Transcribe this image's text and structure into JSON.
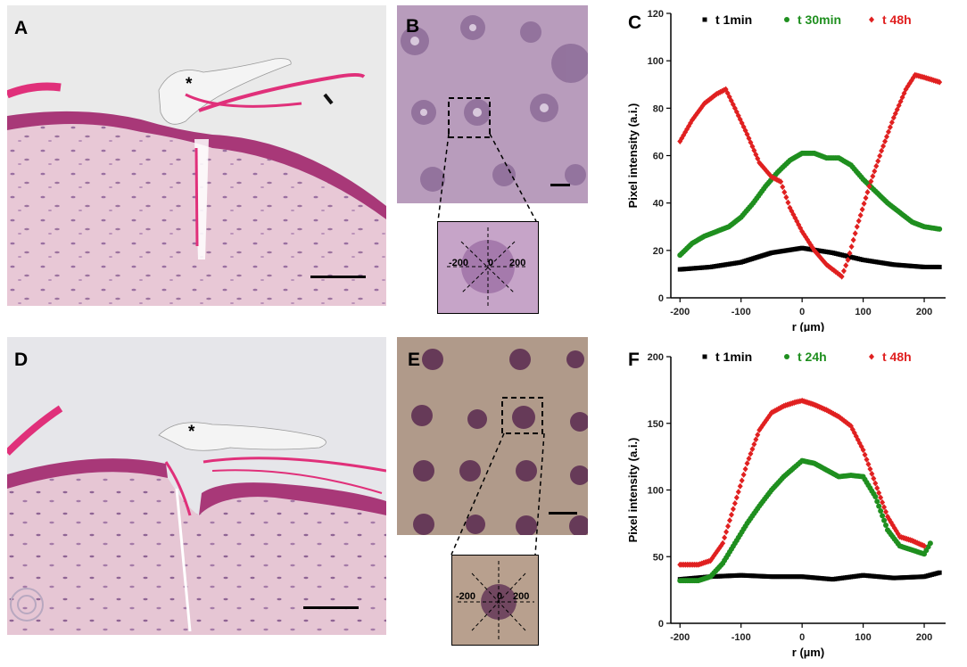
{
  "panels": {
    "A": {
      "label": "A",
      "marker": "*"
    },
    "B": {
      "label": "B",
      "profile": {
        "left": "-200",
        "center": "0",
        "right": "200"
      }
    },
    "C": {
      "label": "C"
    },
    "D": {
      "label": "D",
      "marker": "*"
    },
    "E": {
      "label": "E",
      "profile": {
        "left": "-200",
        "center": "0",
        "right": "200"
      }
    },
    "F": {
      "label": "F"
    }
  },
  "colors": {
    "t_short": "#000000",
    "t_mid": "#1f8f1f",
    "t_long": "#e02020",
    "tissue": "#e8c8d8",
    "epidermis": "#b03878",
    "fiber": "#e0307a"
  },
  "chart_data": [
    {
      "panel": "C",
      "type": "scatter",
      "title": "",
      "xlabel": "r (µm)",
      "ylabel": "Pixel intensity (a.i.)",
      "xlim": [
        -215,
        235
      ],
      "ylim": [
        0,
        120
      ],
      "xticks": [
        -200,
        -100,
        0,
        100,
        200
      ],
      "yticks": [
        0,
        20,
        40,
        60,
        80,
        100,
        120
      ],
      "legend_position": "top",
      "series": [
        {
          "name": "t 1min",
          "color": "#000000",
          "marker": "square",
          "x": [
            -200,
            -150,
            -100,
            -50,
            0,
            50,
            100,
            150,
            200,
            225
          ],
          "y": [
            12,
            13,
            15,
            19,
            21,
            19,
            16,
            14,
            13,
            13
          ]
        },
        {
          "name": "t 30min",
          "color": "#1f8f1f",
          "marker": "circle",
          "x": [
            -200,
            -180,
            -160,
            -140,
            -120,
            -100,
            -80,
            -60,
            -40,
            -20,
            0,
            20,
            40,
            60,
            80,
            100,
            120,
            140,
            160,
            180,
            200,
            225
          ],
          "y": [
            18,
            23,
            26,
            28,
            30,
            34,
            40,
            47,
            53,
            58,
            61,
            61,
            59,
            59,
            56,
            50,
            45,
            40,
            36,
            32,
            30,
            29
          ]
        },
        {
          "name": "t 48h",
          "color": "#e02020",
          "marker": "diamond",
          "x": [
            -200,
            -180,
            -160,
            -140,
            -125,
            -110,
            -90,
            -70,
            -50,
            -35,
            -20,
            0,
            20,
            40,
            55,
            65,
            75,
            90,
            110,
            130,
            150,
            170,
            185,
            200,
            225
          ],
          "y": [
            66,
            75,
            82,
            86,
            88,
            80,
            69,
            57,
            51,
            49,
            38,
            28,
            20,
            14,
            11,
            9,
            16,
            30,
            47,
            62,
            76,
            88,
            94,
            93,
            91
          ]
        }
      ]
    },
    {
      "panel": "F",
      "type": "scatter",
      "title": "",
      "xlabel": "r (µm)",
      "ylabel": "Pixel intensity (a.i.)",
      "xlim": [
        -215,
        235
      ],
      "ylim": [
        0,
        200
      ],
      "xticks": [
        -200,
        -100,
        0,
        100,
        200
      ],
      "yticks": [
        0,
        50,
        100,
        150,
        200
      ],
      "legend_position": "top",
      "series": [
        {
          "name": "t 1min",
          "color": "#000000",
          "marker": "square",
          "x": [
            -200,
            -150,
            -100,
            -50,
            0,
            50,
            100,
            150,
            200,
            225
          ],
          "y": [
            33,
            35,
            36,
            35,
            35,
            33,
            36,
            34,
            35,
            38
          ]
        },
        {
          "name": "t 24h",
          "color": "#1f8f1f",
          "marker": "circle",
          "x": [
            -200,
            -170,
            -150,
            -130,
            -110,
            -90,
            -70,
            -50,
            -30,
            -10,
            0,
            20,
            40,
            60,
            80,
            100,
            120,
            140,
            160,
            180,
            200,
            210
          ],
          "y": [
            32,
            32,
            35,
            45,
            60,
            75,
            88,
            100,
            110,
            118,
            122,
            120,
            115,
            110,
            111,
            110,
            95,
            70,
            58,
            55,
            52,
            60
          ]
        },
        {
          "name": "t 48h",
          "color": "#e02020",
          "marker": "diamond",
          "x": [
            -200,
            -170,
            -150,
            -130,
            -110,
            -90,
            -70,
            -50,
            -30,
            -10,
            0,
            20,
            40,
            60,
            80,
            100,
            120,
            140,
            160,
            180,
            200
          ],
          "y": [
            44,
            44,
            47,
            60,
            90,
            120,
            145,
            158,
            163,
            166,
            167,
            164,
            160,
            155,
            148,
            130,
            105,
            80,
            65,
            62,
            58
          ]
        }
      ]
    }
  ]
}
